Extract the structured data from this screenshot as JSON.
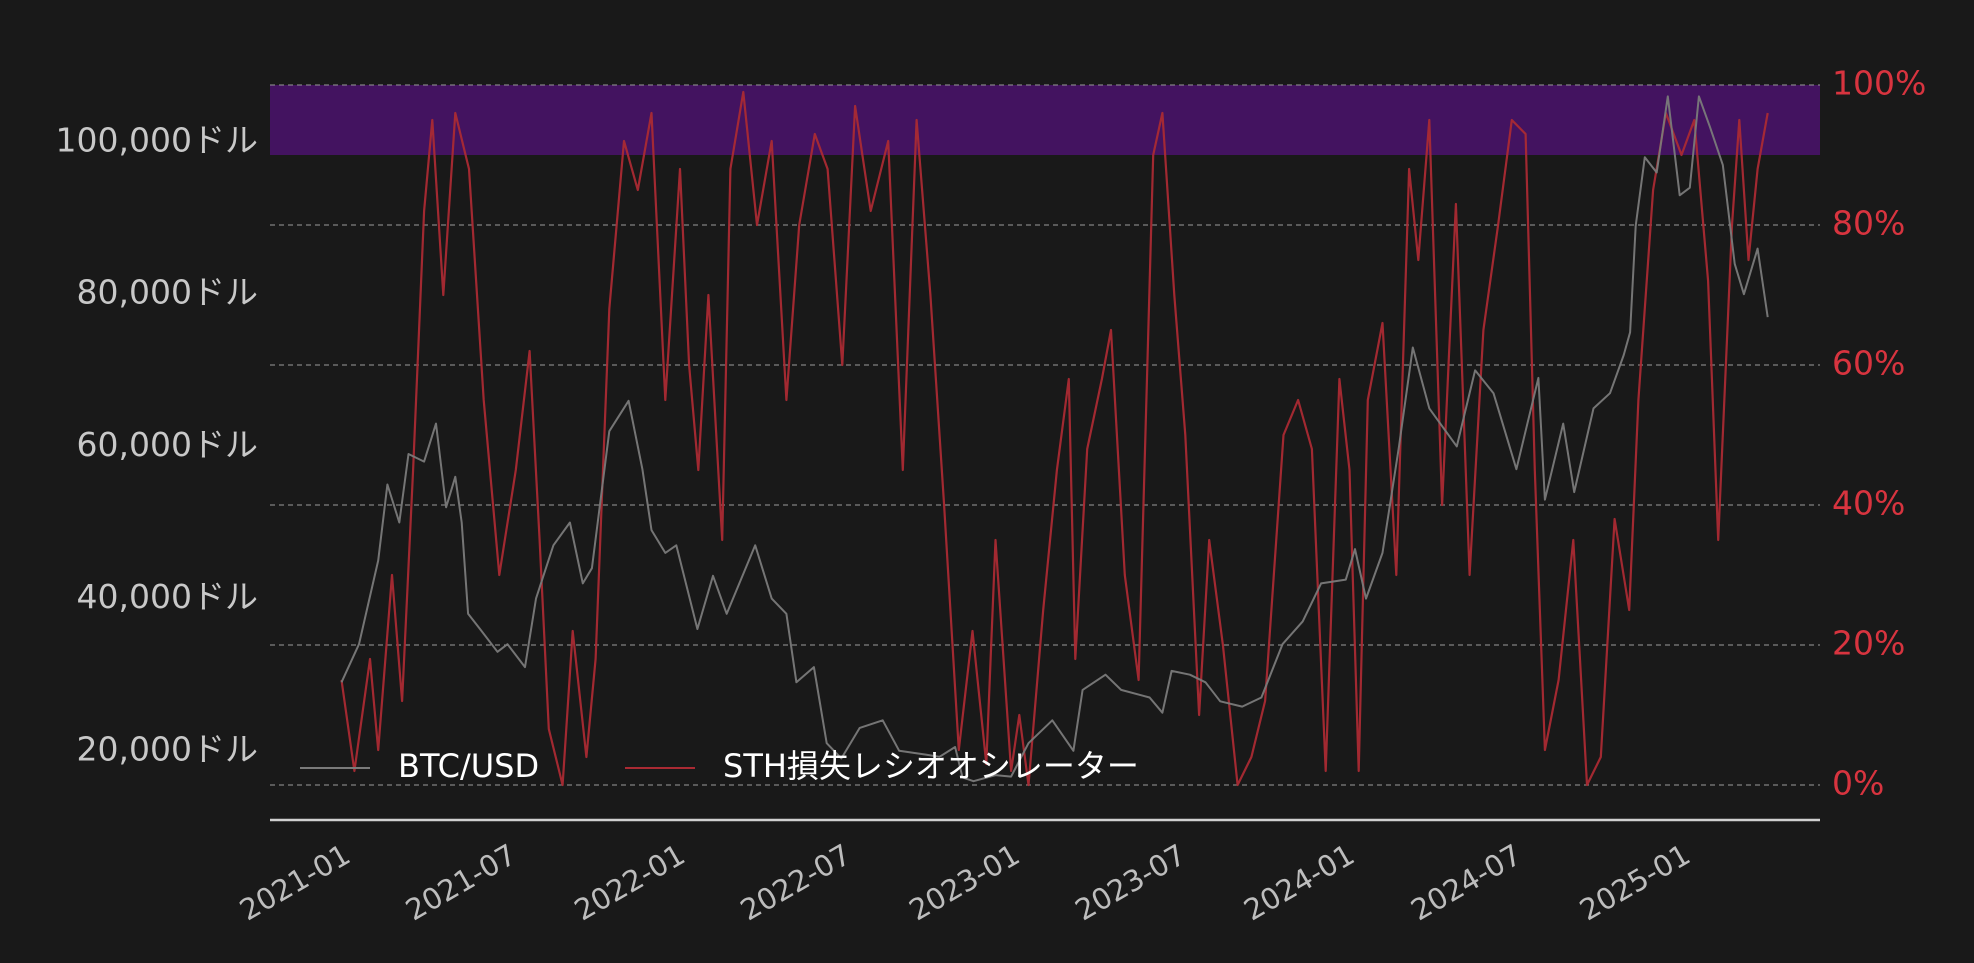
{
  "chart_data": {
    "type": "line",
    "title": "",
    "xlabel": "",
    "ylabel_left": "",
    "ylabel_right": "",
    "x_ticks": [
      "2021-01",
      "2021-07",
      "2022-01",
      "2022-07",
      "2023-01",
      "2023-07",
      "2024-01",
      "2024-07",
      "2025-01"
    ],
    "x_range": [
      "2020-10-15",
      "2025-06-01"
    ],
    "y_left": {
      "ticks": [
        20000,
        40000,
        60000,
        80000,
        100000
      ],
      "tick_labels": [
        "20,000ドル",
        "40,000ドル",
        "60,000ドル",
        "80,000ドル",
        "100,000ドル"
      ],
      "range": [
        15500,
        107500
      ],
      "color": "#c8c8c8"
    },
    "y_right": {
      "ticks": [
        0,
        20,
        40,
        60,
        80,
        100
      ],
      "tick_labels": [
        "0%",
        "20%",
        "40%",
        "60%",
        "80%",
        "100%"
      ],
      "range": [
        0,
        100
      ],
      "color": "#d8343f"
    },
    "grid": "horizontal-dashed",
    "highlight_band": {
      "axis": "right",
      "from": 90,
      "to": 100,
      "color": "#431360"
    },
    "legend": {
      "placement": "bottom-left"
    },
    "series": [
      {
        "name": "BTC/USD",
        "axis": "left",
        "color": "#7a7a7a",
        "x": [
          "2021-01-01",
          "2021-01-20",
          "2021-02-10",
          "2021-02-20",
          "2021-03-05",
          "2021-03-15",
          "2021-04-01",
          "2021-04-14",
          "2021-04-25",
          "2021-05-05",
          "2021-05-12",
          "2021-05-19",
          "2021-06-01",
          "2021-06-20",
          "2021-07-01",
          "2021-07-20",
          "2021-08-01",
          "2021-08-20",
          "2021-09-07",
          "2021-09-21",
          "2021-10-01",
          "2021-10-20",
          "2021-11-10",
          "2021-11-25",
          "2021-12-05",
          "2021-12-20",
          "2022-01-01",
          "2022-01-24",
          "2022-02-10",
          "2022-02-25",
          "2022-03-28",
          "2022-04-15",
          "2022-05-01",
          "2022-05-12",
          "2022-05-31",
          "2022-06-14",
          "2022-06-30",
          "2022-07-20",
          "2022-08-14",
          "2022-09-01",
          "2022-09-30",
          "2022-10-15",
          "2022-11-01",
          "2022-11-09",
          "2022-11-21",
          "2022-12-15",
          "2023-01-01",
          "2023-01-20",
          "2023-02-15",
          "2023-03-10",
          "2023-03-20",
          "2023-04-14",
          "2023-05-01",
          "2023-06-01",
          "2023-06-15",
          "2023-06-25",
          "2023-07-15",
          "2023-08-01",
          "2023-08-17",
          "2023-09-10",
          "2023-10-01",
          "2023-10-24",
          "2023-11-15",
          "2023-12-05",
          "2024-01-01",
          "2024-01-11",
          "2024-01-23",
          "2024-02-10",
          "2024-02-28",
          "2024-03-14",
          "2024-04-01",
          "2024-05-01",
          "2024-05-21",
          "2024-06-10",
          "2024-07-05",
          "2024-07-29",
          "2024-08-05",
          "2024-08-25",
          "2024-09-06",
          "2024-09-27",
          "2024-10-15",
          "2024-10-30",
          "2024-11-06",
          "2024-11-12",
          "2024-11-22",
          "2024-12-05",
          "2024-12-17",
          "2024-12-30",
          "2025-01-10",
          "2025-01-20",
          "2025-02-01",
          "2025-02-15",
          "2025-02-28",
          "2025-03-10",
          "2025-03-25",
          "2025-04-05"
        ],
        "y": [
          29000,
          34000,
          45000,
          55000,
          50000,
          59000,
          58000,
          63000,
          52000,
          56000,
          50000,
          38000,
          36000,
          33000,
          34000,
          31000,
          40000,
          47000,
          50000,
          42000,
          44000,
          62000,
          66000,
          57000,
          49000,
          46000,
          47000,
          36000,
          43000,
          38000,
          47000,
          40000,
          38000,
          29000,
          31000,
          21000,
          19000,
          23000,
          24000,
          20000,
          19500,
          19200,
          20500,
          16500,
          16000,
          16800,
          16600,
          21000,
          24000,
          20000,
          28000,
          30000,
          28000,
          27000,
          25000,
          30500,
          30000,
          29000,
          26500,
          25800,
          27000,
          34000,
          37000,
          42000,
          42500,
          46500,
          40000,
          46000,
          60000,
          73000,
          65000,
          60000,
          70000,
          67000,
          57000,
          69000,
          53000,
          63000,
          54000,
          65000,
          67000,
          72000,
          75000,
          89000,
          98000,
          96000,
          106000,
          93000,
          94000,
          106000,
          102000,
          97000,
          84000,
          80000,
          86000,
          77000
        ]
      },
      {
        "name": "STH損失レシオオシレーター",
        "axis": "right",
        "color": "#aa2a33",
        "x": [
          "2021-01-01",
          "2021-01-15",
          "2021-02-01",
          "2021-02-10",
          "2021-02-25",
          "2021-03-08",
          "2021-03-20",
          "2021-04-01",
          "2021-04-10",
          "2021-04-22",
          "2021-05-05",
          "2021-05-20",
          "2021-06-05",
          "2021-06-22",
          "2021-07-10",
          "2021-07-25",
          "2021-08-05",
          "2021-08-15",
          "2021-08-30",
          "2021-09-10",
          "2021-09-25",
          "2021-10-05",
          "2021-10-20",
          "2021-11-05",
          "2021-11-20",
          "2021-12-05",
          "2021-12-20",
          "2022-01-05",
          "2022-01-15",
          "2022-01-25",
          "2022-02-05",
          "2022-02-20",
          "2022-03-01",
          "2022-03-15",
          "2022-03-30",
          "2022-04-15",
          "2022-05-01",
          "2022-05-15",
          "2022-06-01",
          "2022-06-15",
          "2022-07-01",
          "2022-07-15",
          "2022-08-01",
          "2022-08-20",
          "2022-09-05",
          "2022-09-20",
          "2022-10-05",
          "2022-10-20",
          "2022-11-05",
          "2022-11-20",
          "2022-12-05",
          "2022-12-15",
          "2023-01-01",
          "2023-01-10",
          "2023-01-20",
          "2023-02-05",
          "2023-02-20",
          "2023-03-05",
          "2023-03-12",
          "2023-03-25",
          "2023-04-10",
          "2023-04-20",
          "2023-05-05",
          "2023-05-20",
          "2023-06-05",
          "2023-06-15",
          "2023-06-28",
          "2023-07-10",
          "2023-07-25",
          "2023-08-05",
          "2023-08-20",
          "2023-09-05",
          "2023-09-20",
          "2023-10-05",
          "2023-10-25",
          "2023-11-10",
          "2023-11-25",
          "2023-12-10",
          "2023-12-25",
          "2024-01-05",
          "2024-01-15",
          "2024-01-25",
          "2024-02-10",
          "2024-02-25",
          "2024-03-10",
          "2024-03-20",
          "2024-04-01",
          "2024-04-15",
          "2024-04-30",
          "2024-05-15",
          "2024-05-30",
          "2024-06-15",
          "2024-06-30",
          "2024-07-15",
          "2024-07-25",
          "2024-08-05",
          "2024-08-20",
          "2024-09-05",
          "2024-09-20",
          "2024-10-05",
          "2024-10-20",
          "2024-11-05",
          "2024-11-15",
          "2024-12-01",
          "2024-12-15",
          "2025-01-01",
          "2025-01-15",
          "2025-01-30",
          "2025-02-10",
          "2025-02-25",
          "2025-03-05",
          "2025-03-15",
          "2025-03-25",
          "2025-04-05"
        ],
        "y": [
          15,
          2,
          18,
          5,
          30,
          12,
          45,
          82,
          95,
          70,
          96,
          88,
          55,
          30,
          45,
          62,
          35,
          8,
          0,
          22,
          4,
          18,
          68,
          92,
          85,
          96,
          55,
          88,
          60,
          45,
          70,
          35,
          88,
          99,
          80,
          92,
          55,
          80,
          93,
          88,
          60,
          97,
          82,
          92,
          45,
          95,
          70,
          40,
          5,
          22,
          3,
          35,
          2,
          10,
          0,
          25,
          45,
          58,
          18,
          48,
          58,
          65,
          30,
          15,
          90,
          96,
          70,
          50,
          10,
          35,
          20,
          0,
          4,
          12,
          50,
          55,
          48,
          2,
          58,
          45,
          2,
          55,
          66,
          30,
          88,
          75,
          95,
          40,
          83,
          30,
          65,
          80,
          95,
          93,
          45,
          5,
          15,
          35,
          0,
          4,
          38,
          25,
          55,
          85,
          96,
          90,
          95,
          72,
          35,
          80,
          95,
          75,
          88,
          96
        ]
      }
    ]
  }
}
